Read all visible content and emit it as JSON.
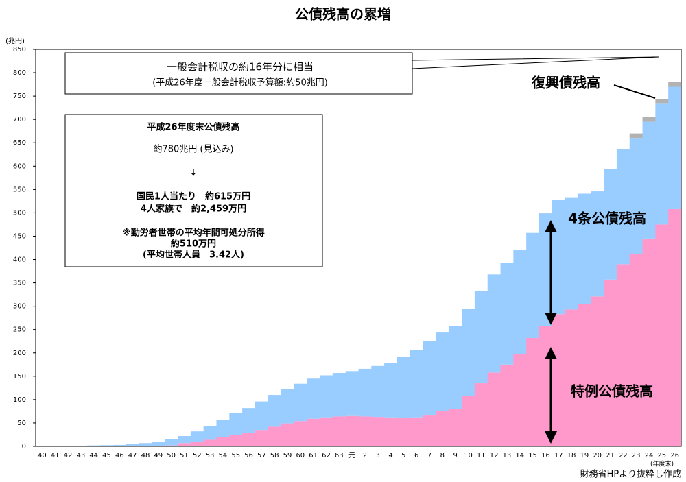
{
  "chart_data": {
    "type": "stacked-step-area",
    "title": "公債残高の累増",
    "y_unit": "(兆円)",
    "x_unit": "(年度末)",
    "source": "財務省HPより抜粋し作成",
    "categories": [
      "40",
      "41",
      "42",
      "43",
      "44",
      "45",
      "46",
      "47",
      "48",
      "49",
      "50",
      "51",
      "52",
      "53",
      "54",
      "55",
      "56",
      "57",
      "58",
      "59",
      "60",
      "61",
      "62",
      "63",
      "元",
      "2",
      "3",
      "4",
      "5",
      "6",
      "7",
      "8",
      "9",
      "10",
      "11",
      "12",
      "13",
      "14",
      "15",
      "16",
      "17",
      "18",
      "19",
      "20",
      "21",
      "22",
      "23",
      "24",
      "25",
      "26"
    ],
    "series": [
      {
        "name": "特例公債残高",
        "color": "#ff99cc",
        "values": [
          null,
          null,
          null,
          null,
          null,
          null,
          null,
          null,
          null,
          null,
          2,
          7,
          10,
          14,
          20,
          25,
          29,
          35,
          42,
          49,
          54,
          59,
          62,
          64,
          65,
          64,
          63,
          62,
          61,
          62,
          66,
          75,
          80,
          108,
          135,
          158,
          175,
          198,
          232,
          258,
          283,
          293,
          304,
          321,
          357,
          390,
          412,
          445,
          475,
          508
        ]
      },
      {
        "name": "4条公債残高",
        "color": "#99ccff",
        "values": [
          0.2,
          0.5,
          1,
          1.5,
          2,
          2.5,
          3,
          5,
          7,
          10,
          13,
          15,
          22,
          29,
          36,
          46,
          53,
          61,
          68,
          73,
          80,
          86,
          90,
          93,
          96,
          102,
          109,
          116,
          131,
          145,
          159,
          170,
          178,
          187,
          197,
          210,
          217,
          223,
          225,
          241,
          244,
          239,
          237,
          225,
          237,
          246,
          247,
          250,
          260,
          262
        ]
      },
      {
        "name": "復興債残高",
        "color": "#b2b2b2",
        "values": [
          null,
          null,
          null,
          null,
          null,
          null,
          null,
          null,
          null,
          null,
          null,
          null,
          null,
          null,
          null,
          null,
          null,
          null,
          null,
          null,
          null,
          null,
          null,
          null,
          null,
          null,
          null,
          null,
          null,
          null,
          null,
          null,
          null,
          null,
          null,
          null,
          null,
          null,
          null,
          null,
          null,
          null,
          null,
          null,
          null,
          null,
          11,
          10,
          9,
          10
        ]
      }
    ],
    "ylim": [
      0,
      850
    ],
    "yticks": [
      0,
      50,
      100,
      150,
      200,
      250,
      300,
      350,
      400,
      450,
      500,
      550,
      600,
      650,
      700,
      750,
      800,
      850
    ],
    "annotations": {
      "box1": [
        "一般会計税収の約16年分に相当",
        "(平成26年度一般会計税収予算額:約50兆円)"
      ],
      "box2": [
        "平成26年度末公債残高",
        "約780兆円 (見込み)",
        "↓",
        "国民1人当たり　約615万円",
        "4人家族で　約2,459万円",
        "※勤労者世帯の平均年間可処分所得",
        "約510万円",
        "(平均世帯人員　3.42人)"
      ]
    }
  }
}
